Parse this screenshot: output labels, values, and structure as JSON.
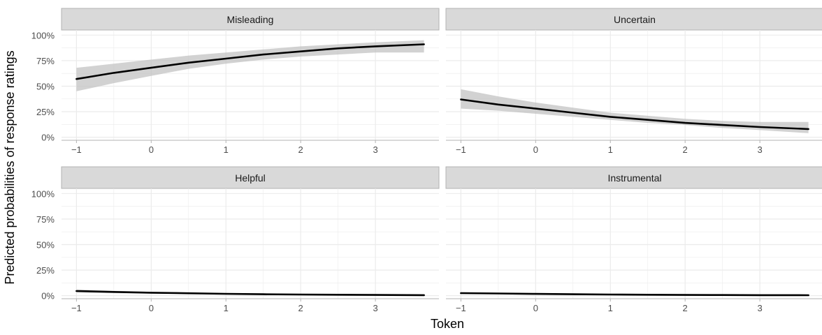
{
  "chart_data": {
    "type": "line",
    "xlabel": "Token",
    "ylabel": "Predicted probabilities of response ratings",
    "xlim": [
      -1.2,
      3.85
    ],
    "ylim": [
      -0.03,
      1.05
    ],
    "x_ticks": [
      -1,
      0,
      1,
      2,
      3
    ],
    "x_tick_labels": [
      "−1",
      "0",
      "1",
      "2",
      "3"
    ],
    "y_ticks": [
      0,
      0.25,
      0.5,
      0.75,
      1
    ],
    "y_tick_labels": [
      "0%",
      "25%",
      "50%",
      "75%",
      "100%"
    ],
    "grid": true,
    "colors": {
      "line": "#000000",
      "ribbon": "#bfbfbf",
      "strip_fill": "#d9d9d9",
      "strip_border": "#b3b3b3",
      "grid": "#ebebeb"
    },
    "panels": [
      {
        "title": "Misleading",
        "x": [
          -1,
          -0.5,
          0,
          0.5,
          1,
          1.5,
          2,
          2.5,
          3,
          3.65
        ],
        "values": [
          0.57,
          0.63,
          0.68,
          0.73,
          0.77,
          0.81,
          0.84,
          0.87,
          0.89,
          0.91
        ],
        "lower": [
          0.45,
          0.53,
          0.6,
          0.67,
          0.72,
          0.76,
          0.79,
          0.81,
          0.83,
          0.83
        ],
        "upper": [
          0.68,
          0.72,
          0.76,
          0.8,
          0.83,
          0.86,
          0.89,
          0.91,
          0.93,
          0.95
        ]
      },
      {
        "title": "Uncertain",
        "x": [
          -1,
          -0.5,
          0,
          0.5,
          1,
          1.5,
          2,
          2.5,
          3,
          3.65
        ],
        "values": [
          0.37,
          0.32,
          0.28,
          0.24,
          0.2,
          0.17,
          0.14,
          0.12,
          0.1,
          0.08
        ],
        "lower": [
          0.28,
          0.26,
          0.23,
          0.2,
          0.17,
          0.14,
          0.12,
          0.09,
          0.07,
          0.04
        ],
        "upper": [
          0.47,
          0.4,
          0.34,
          0.29,
          0.24,
          0.21,
          0.18,
          0.16,
          0.15,
          0.15
        ]
      },
      {
        "title": "Helpful",
        "x": [
          -1,
          -0.5,
          0,
          0.5,
          1,
          1.5,
          2,
          2.5,
          3,
          3.65
        ],
        "values": [
          0.045,
          0.036,
          0.029,
          0.023,
          0.018,
          0.014,
          0.011,
          0.009,
          0.007,
          0.005
        ],
        "lower": [
          0.03,
          0.025,
          0.02,
          0.016,
          0.012,
          0.009,
          0.007,
          0.005,
          0.004,
          0.002
        ],
        "upper": [
          0.06,
          0.048,
          0.038,
          0.03,
          0.024,
          0.019,
          0.015,
          0.013,
          0.011,
          0.009
        ]
      },
      {
        "title": "Instrumental",
        "x": [
          -1,
          -0.5,
          0,
          0.5,
          1,
          1.5,
          2,
          2.5,
          3,
          3.65
        ],
        "values": [
          0.025,
          0.021,
          0.017,
          0.014,
          0.011,
          0.009,
          0.007,
          0.006,
          0.005,
          0.004
        ],
        "lower": [
          0.016,
          0.014,
          0.011,
          0.009,
          0.007,
          0.006,
          0.004,
          0.003,
          0.002,
          0.001
        ],
        "upper": [
          0.034,
          0.028,
          0.023,
          0.019,
          0.015,
          0.012,
          0.01,
          0.009,
          0.008,
          0.007
        ]
      }
    ]
  }
}
